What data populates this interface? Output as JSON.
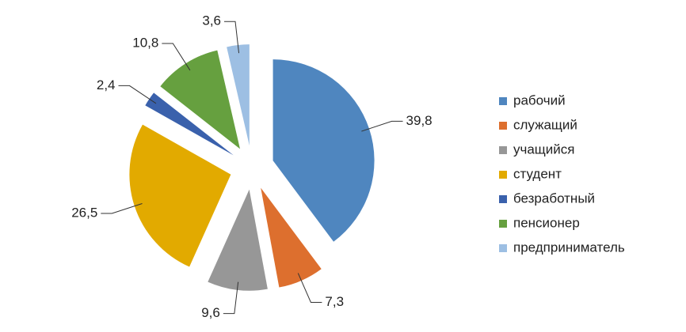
{
  "chart_data": {
    "type": "pie",
    "categories": [
      "рабочий",
      "служащий",
      "учащийся",
      "студент",
      "безработный",
      "пенсионер",
      "предприниматель"
    ],
    "values": [
      39.8,
      7.3,
      9.6,
      26.5,
      2.4,
      10.8,
      3.6
    ],
    "value_labels": [
      "39,8",
      "7,3",
      "9,6",
      "26,5",
      "2,4",
      "10,8",
      "3,6"
    ],
    "colors": [
      "#4f86bf",
      "#dd6f2e",
      "#979797",
      "#e2aa00",
      "#3a61ac",
      "#66a03f",
      "#9dbfe3"
    ],
    "legend": "right"
  }
}
